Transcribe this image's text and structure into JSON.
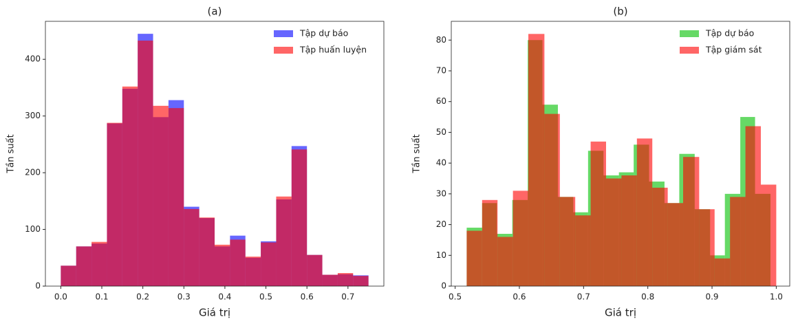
{
  "chart_data": [
    {
      "type": "histogram",
      "title": "(a)",
      "xlabel": "Giá trị",
      "ylabel": "Tần suất",
      "xlim": [
        -0.0375,
        0.7875
      ],
      "ylim": [
        0,
        467
      ],
      "xticks": [
        {
          "value": 0,
          "label": "0.0"
        },
        0.1,
        0.2,
        0.3,
        0.4,
        0.5,
        0.6,
        0.7
      ],
      "yticks": [
        0,
        100,
        200,
        300,
        400
      ],
      "legend": "upper right",
      "alpha": 0.6,
      "series": [
        {
          "name": "Tập dự báo",
          "color": "#0000ff",
          "bins": [
            0,
            0.0375,
            0.075,
            0.1125,
            0.15,
            0.1875,
            0.225,
            0.2625,
            0.3,
            0.3375,
            0.375,
            0.4125,
            0.45,
            0.4875,
            0.525,
            0.5625,
            0.6,
            0.6375,
            0.675,
            0.7125,
            0.75
          ],
          "values": [
            36,
            70,
            75,
            287,
            348,
            445,
            298,
            328,
            140,
            120,
            70,
            89,
            50,
            79,
            153,
            247,
            55,
            20,
            21,
            19
          ]
        },
        {
          "name": "Tập huấn luyện",
          "color": "#ff0000",
          "bins": [
            0,
            0.0375,
            0.075,
            0.1125,
            0.15,
            0.1875,
            0.225,
            0.2625,
            0.3,
            0.3375,
            0.375,
            0.4125,
            0.45,
            0.4875,
            0.525,
            0.5625,
            0.6,
            0.6375,
            0.675,
            0.7125,
            0.75
          ],
          "values": [
            36,
            70,
            78,
            288,
            352,
            433,
            318,
            314,
            136,
            121,
            73,
            82,
            52,
            77,
            158,
            241,
            55,
            20,
            23,
            18
          ]
        }
      ]
    },
    {
      "type": "histogram",
      "title": "(b)",
      "xlabel": "Giá trị",
      "ylabel": "Tần suất",
      "xlim": [
        0.494,
        1.021
      ],
      "ylim": [
        0,
        86.1
      ],
      "xticks": [
        0.5,
        0.6,
        0.7,
        0.8,
        0.9,
        {
          "value": 1,
          "label": "1.0"
        }
      ],
      "yticks": [
        0,
        10,
        20,
        30,
        40,
        50,
        60,
        70,
        80
      ],
      "legend": "upper right",
      "alpha": 0.6,
      "series": [
        {
          "name": "Tập dự báo",
          "color": "#00c000",
          "bins": [
            0.518,
            0.542,
            0.565,
            0.589,
            0.613,
            0.636,
            0.66,
            0.684,
            0.707,
            0.731,
            0.755,
            0.778,
            0.802,
            0.826,
            0.849,
            0.873,
            0.897,
            0.92,
            0.944,
            0.967,
            0.991
          ],
          "values": [
            19,
            27,
            17,
            28,
            80,
            59,
            29,
            24,
            44,
            36,
            37,
            46,
            34,
            27,
            43,
            25,
            10,
            30,
            55,
            30
          ]
        },
        {
          "name": "Tập giám sát",
          "color": "#ff0000",
          "bins": [
            0.518,
            0.542,
            0.566,
            0.59,
            0.614,
            0.639,
            0.663,
            0.687,
            0.711,
            0.735,
            0.759,
            0.783,
            0.807,
            0.831,
            0.855,
            0.88,
            0.904,
            0.928,
            0.952,
            0.976,
            1.0
          ],
          "values": [
            18,
            28,
            16,
            31,
            82,
            56,
            29,
            23,
            47,
            35,
            36,
            48,
            32,
            27,
            42,
            25,
            9,
            29,
            52,
            33
          ]
        }
      ]
    }
  ]
}
